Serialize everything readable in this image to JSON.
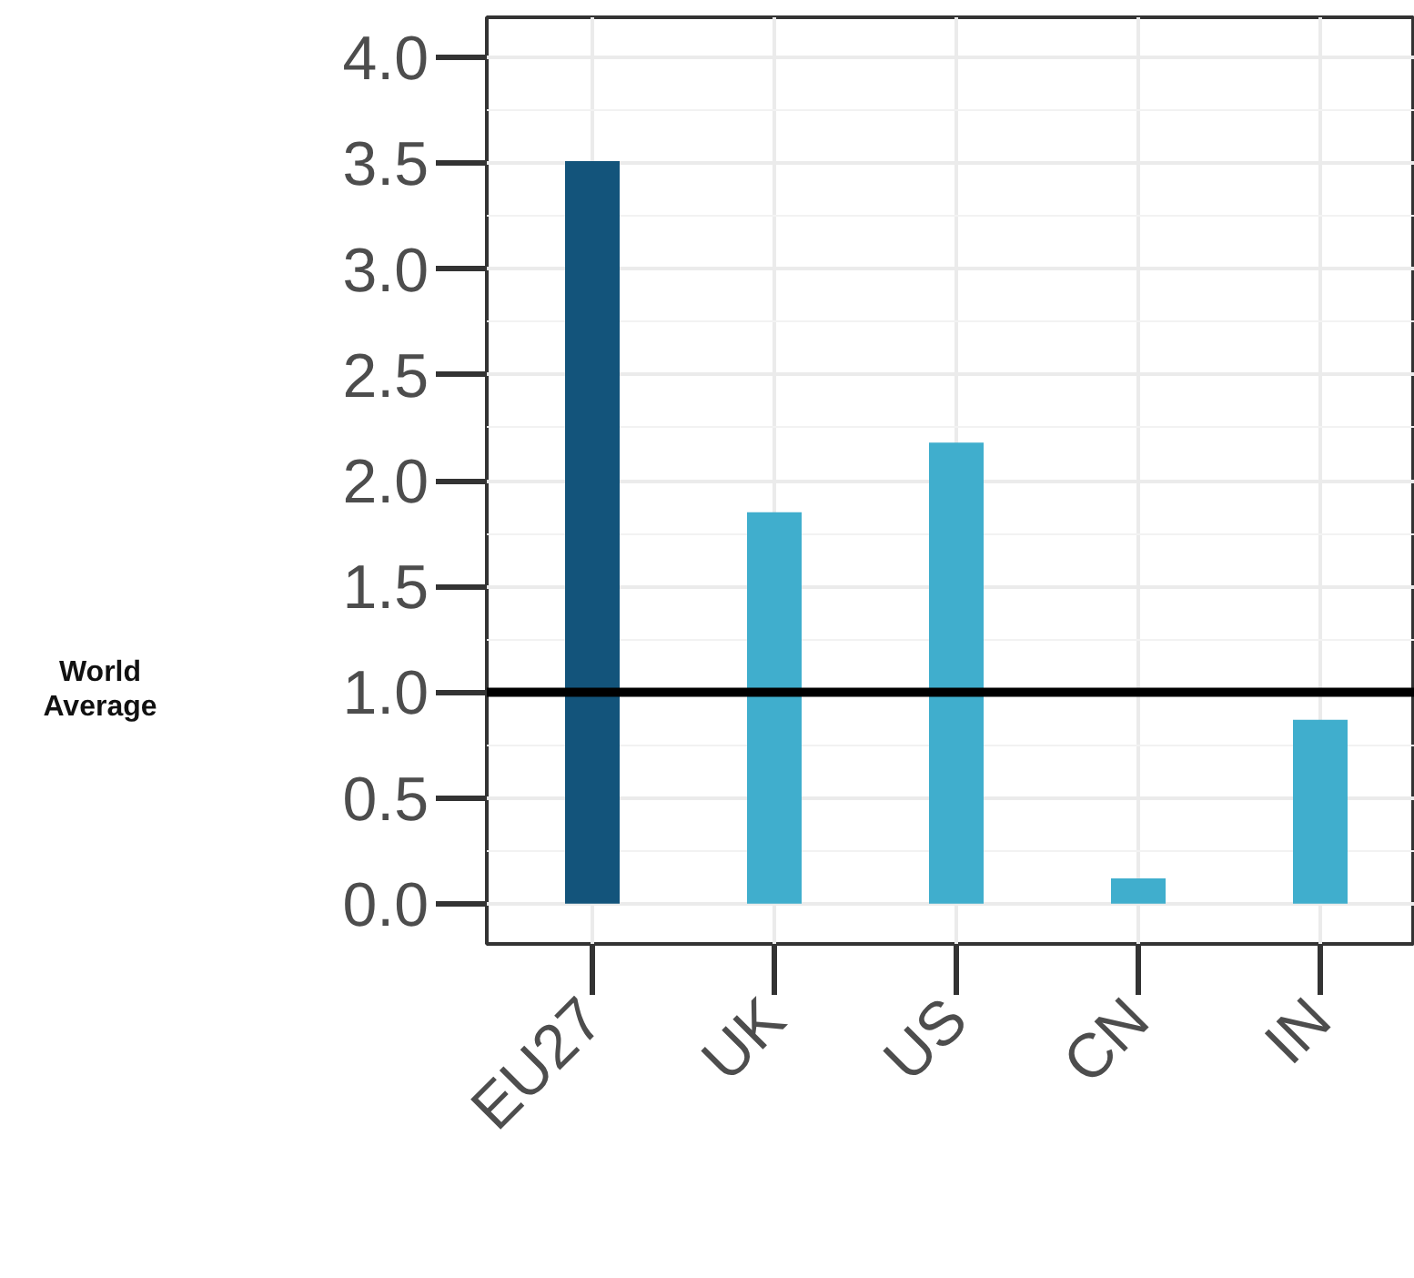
{
  "chart_data": {
    "type": "bar",
    "categories": [
      "EU27",
      "UK",
      "US",
      "CN",
      "IN"
    ],
    "values": [
      3.51,
      1.85,
      2.18,
      0.12,
      0.87
    ],
    "colors": [
      "#13547b",
      "#40aecd",
      "#40aecd",
      "#40aecd",
      "#40aecd"
    ],
    "ylim": [
      -0.19,
      4.19
    ],
    "yticks": [
      {
        "value": 0,
        "label": "0.0"
      },
      {
        "value": 0.5,
        "label": "0.5"
      },
      {
        "value": 1,
        "label": "1.0"
      },
      {
        "value": 1.5,
        "label": "1.5"
      },
      {
        "value": 2,
        "label": "2.0"
      },
      {
        "value": 2.5,
        "label": "2.5"
      },
      {
        "value": 3,
        "label": "3.0"
      },
      {
        "value": 3.5,
        "label": "3.5"
      },
      {
        "value": 4,
        "label": "4.0"
      }
    ],
    "grid": true,
    "ref_lines": [
      {
        "axis": "y",
        "value": 1,
        "label": "World Average",
        "color": "#000000"
      }
    ]
  }
}
